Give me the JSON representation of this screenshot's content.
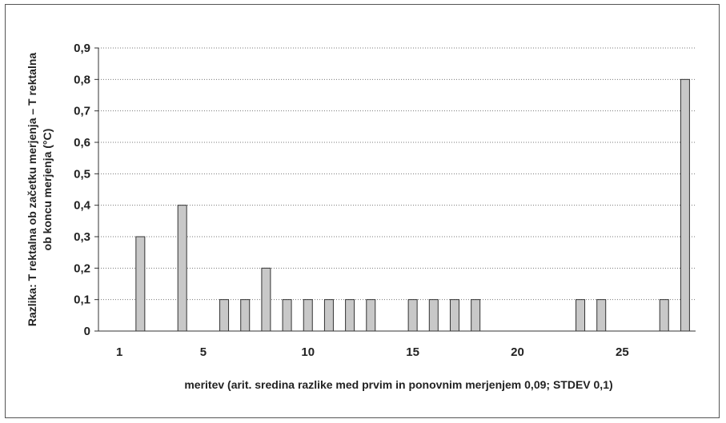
{
  "chart_data": {
    "type": "bar",
    "xlabel": "meritev (arit. sredina razlike med prvim in ponovnim merjenjem 0,09; STDEV 0,1)",
    "ylabel_lines": [
      "Razlika: T rektalna ob začetku merjenja – T rektalna",
      "ob koncu merjenja (°C)"
    ],
    "ylim": [
      0,
      0.9
    ],
    "xlim": [
      0,
      28.5
    ],
    "x_ticks": [
      1,
      5,
      10,
      15,
      20,
      25
    ],
    "y_ticks": [
      0,
      0.1,
      0.2,
      0.3,
      0.4,
      0.5,
      0.6,
      0.7,
      0.8,
      0.9
    ],
    "y_tick_labels": [
      "0",
      "0,1",
      "0,2",
      "0,3",
      "0,4",
      "0,5",
      "0,6",
      "0,7",
      "0,8",
      "0,9"
    ],
    "grid": "horizontal dotted",
    "bar_color": "#c8c8c8",
    "x": [
      2,
      4,
      6,
      7,
      8,
      9,
      10,
      11,
      12,
      13,
      15,
      16,
      17,
      18,
      23,
      24,
      27,
      28
    ],
    "values": [
      0.3,
      0.4,
      0.1,
      0.1,
      0.2,
      0.1,
      0.1,
      0.1,
      0.1,
      0.1,
      0.1,
      0.1,
      0.1,
      0.1,
      0.1,
      0.1,
      0.1,
      0.8
    ]
  }
}
